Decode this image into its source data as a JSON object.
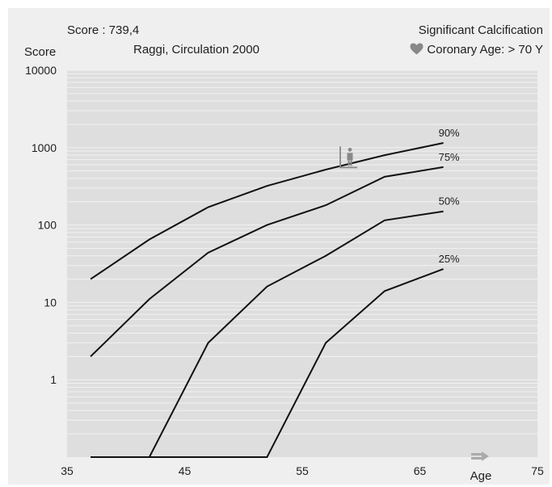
{
  "header": {
    "score": "Score : 739,4",
    "reference": "Raggi, Circulation 2000",
    "calcification": "Significant Calcification",
    "coronary_age": "Coronary Age: > 70 Y",
    "heart_icon": "heart-icon"
  },
  "colors": {
    "background": "#efefef",
    "plot_area": "#dedede",
    "gridline": "#f2f2f2",
    "curve": "#111111",
    "text": "#202020",
    "icon": "#888888"
  },
  "chart_data": {
    "type": "line",
    "title": "",
    "xlabel": "Age",
    "ylabel": "Score",
    "xscale": "linear",
    "yscale": "log",
    "xlim": [
      35,
      75
    ],
    "ylim": [
      0.1,
      10000
    ],
    "x_ticks": [
      35,
      45,
      55,
      65,
      75
    ],
    "y_ticks": [
      1,
      10,
      100,
      1000,
      10000
    ],
    "y_tick_labels": [
      "1",
      "10",
      "100",
      "1000",
      "10000"
    ],
    "grid": "horizontal minor lines",
    "series": [
      {
        "name": "90%",
        "x": [
          37,
          42,
          47,
          52,
          57,
          62,
          67
        ],
        "y": [
          20,
          65,
          170,
          320,
          520,
          800,
          1150
        ]
      },
      {
        "name": "75%",
        "x": [
          37,
          42,
          47,
          52,
          57,
          62,
          67
        ],
        "y": [
          2,
          11,
          44,
          100,
          180,
          420,
          560
        ]
      },
      {
        "name": "50%",
        "x": [
          37,
          42,
          47,
          52,
          57,
          62,
          67
        ],
        "y": [
          0.1,
          0.1,
          3,
          16,
          40,
          115,
          150
        ]
      },
      {
        "name": "25%",
        "x": [
          37,
          42,
          47,
          52,
          57,
          62,
          67
        ],
        "y": [
          0.1,
          0.1,
          0.1,
          0.1,
          3,
          14,
          27
        ]
      }
    ],
    "patient_marker": {
      "score": 739.4,
      "icon": "patient-marker-icon"
    },
    "x_axis_icon": "arrow-icon"
  }
}
